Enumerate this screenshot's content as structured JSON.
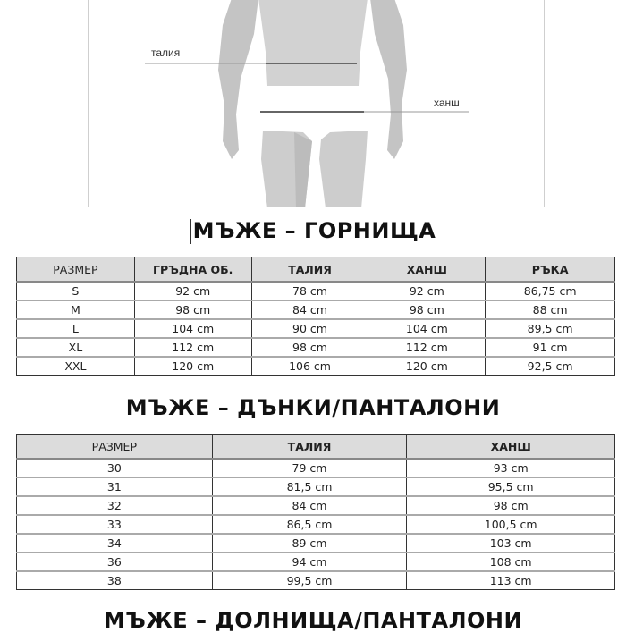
{
  "figure": {
    "labels": {
      "waist": "талия",
      "hip": "ханш"
    }
  },
  "tops": {
    "title": "МЪЖЕ – ГОРНИЩА",
    "headers": [
      "РАЗМЕР",
      "ГРЪДНА ОБ.",
      "ТАЛИЯ",
      "ХАНШ",
      "РЪКА"
    ],
    "rows": [
      [
        "S",
        "92 cm",
        "78 cm",
        "92 cm",
        "86,75 cm"
      ],
      [
        "M",
        "98 cm",
        "84 cm",
        "98 cm",
        "88 cm"
      ],
      [
        "L",
        "104 cm",
        "90 cm",
        "104 cm",
        "89,5 cm"
      ],
      [
        "XL",
        "112 cm",
        "98 cm",
        "112 cm",
        "91 cm"
      ],
      [
        "XXL",
        "120 cm",
        "106 cm",
        "120 cm",
        "92,5 cm"
      ]
    ]
  },
  "jeans": {
    "title": "МЪЖЕ – ДЪНКИ/ПАНТАЛОНИ",
    "headers": [
      "РАЗМЕР",
      "ТАЛИЯ",
      "ХАНШ"
    ],
    "rows": [
      [
        "30",
        "79 cm",
        "93 cm"
      ],
      [
        "31",
        "81,5 cm",
        "95,5 cm"
      ],
      [
        "32",
        "84 cm",
        "98 cm"
      ],
      [
        "33",
        "86,5 cm",
        "100,5 cm"
      ],
      [
        "34",
        "89 cm",
        "103 cm"
      ],
      [
        "36",
        "94 cm",
        "108 cm"
      ],
      [
        "38",
        "99,5 cm",
        "113 cm"
      ]
    ]
  },
  "bottoms": {
    "title": "МЪЖЕ – ДОЛНИЩА/ПАНТАЛОНИ"
  }
}
